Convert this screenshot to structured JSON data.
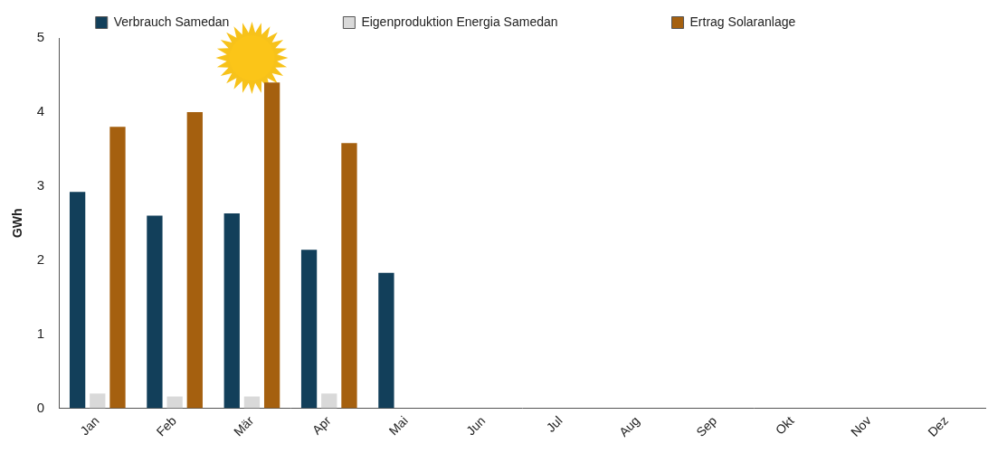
{
  "chart_data": {
    "type": "bar",
    "y_label": "GWh",
    "categories": [
      "Jan",
      "Feb",
      "Mär",
      "Apr",
      "Mai",
      "Jun",
      "Jul",
      "Aug",
      "Sep",
      "Okt",
      "Nov",
      "Dez"
    ],
    "series": [
      {
        "name": "Verbrauch Samedan",
        "color": "#123f5a",
        "values": [
          2.92,
          2.6,
          2.63,
          2.14,
          1.83,
          null,
          null,
          null,
          null,
          null,
          null,
          null
        ]
      },
      {
        "name": "Eigenproduktion Energia Samedan",
        "color": "#d9d9d9",
        "values": [
          0.2,
          0.16,
          0.16,
          0.2,
          null,
          null,
          null,
          null,
          null,
          null,
          null,
          null
        ]
      },
      {
        "name": "Ertrag Solaranlage",
        "color": "#a5600f",
        "values": [
          3.8,
          4.0,
          4.4,
          3.58,
          null,
          null,
          null,
          null,
          null,
          null,
          null,
          null
        ]
      }
    ],
    "ylim": [
      0,
      5
    ],
    "yticks": [
      0,
      1,
      2,
      3,
      4,
      5
    ],
    "grid": false,
    "legend": "top"
  }
}
